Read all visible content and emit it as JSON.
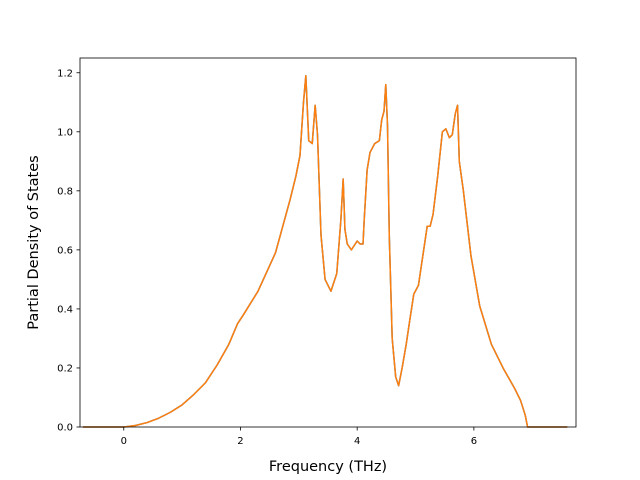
{
  "chart_data": {
    "type": "line",
    "title": "",
    "xlabel": "Frequency (THz)",
    "ylabel": "Partial Density of States",
    "xlim": [
      -0.75,
      7.75
    ],
    "ylim": [
      0,
      1.25
    ],
    "xticks": [
      0,
      2,
      4,
      6
    ],
    "yticks": [
      0.0,
      0.2,
      0.4,
      0.6,
      0.8,
      1.0,
      1.2
    ],
    "xtick_labels": [
      "0",
      "2",
      "4",
      "6"
    ],
    "ytick_labels": [
      "0.0",
      "0.2",
      "0.4",
      "0.6",
      "0.8",
      "1.0",
      "1.2"
    ],
    "grid": false,
    "legend": "none",
    "series": [
      {
        "color": "#1f77b4",
        "x": [
          -0.7,
          0.0,
          0.2,
          0.4,
          0.6,
          0.8,
          1.0,
          1.2,
          1.4,
          1.6,
          1.8,
          1.95,
          2.05,
          2.3,
          2.6,
          2.85,
          2.95,
          3.02,
          3.08,
          3.12,
          3.17,
          3.23,
          3.28,
          3.32,
          3.38,
          3.45,
          3.55,
          3.65,
          3.72,
          3.76,
          3.79,
          3.83,
          3.9,
          4.0,
          4.05,
          4.1,
          4.12,
          4.17,
          4.22,
          4.3,
          4.38,
          4.42,
          4.46,
          4.49,
          4.52,
          4.55,
          4.6,
          4.66,
          4.71,
          4.77,
          4.84,
          4.9,
          4.97,
          5.05,
          5.14,
          5.2,
          5.25,
          5.3,
          5.38,
          5.46,
          5.52,
          5.58,
          5.63,
          5.68,
          5.72,
          5.75,
          5.82,
          5.95,
          6.1,
          6.3,
          6.5,
          6.7,
          6.8,
          6.88,
          6.92,
          7.0,
          7.4,
          7.6
        ],
        "y": [
          0.0,
          0.0,
          0.005,
          0.015,
          0.03,
          0.05,
          0.075,
          0.11,
          0.15,
          0.21,
          0.28,
          0.35,
          0.38,
          0.46,
          0.59,
          0.77,
          0.85,
          0.92,
          1.1,
          1.19,
          0.97,
          0.96,
          1.09,
          0.99,
          0.65,
          0.5,
          0.46,
          0.52,
          0.7,
          0.84,
          0.67,
          0.62,
          0.6,
          0.63,
          0.62,
          0.62,
          0.7,
          0.87,
          0.93,
          0.96,
          0.97,
          1.04,
          1.07,
          1.16,
          1.02,
          0.65,
          0.3,
          0.17,
          0.14,
          0.2,
          0.28,
          0.36,
          0.45,
          0.48,
          0.6,
          0.68,
          0.68,
          0.72,
          0.85,
          1.0,
          1.01,
          0.98,
          0.99,
          1.06,
          1.09,
          0.9,
          0.8,
          0.58,
          0.41,
          0.28,
          0.2,
          0.13,
          0.09,
          0.04,
          0.0,
          0.0,
          0.0,
          0.0
        ]
      },
      {
        "color": "#ff7f0e",
        "x": [
          -0.7,
          0.0,
          0.2,
          0.4,
          0.6,
          0.8,
          1.0,
          1.2,
          1.4,
          1.6,
          1.8,
          1.95,
          2.05,
          2.3,
          2.6,
          2.85,
          2.95,
          3.02,
          3.08,
          3.12,
          3.17,
          3.23,
          3.28,
          3.32,
          3.38,
          3.45,
          3.55,
          3.65,
          3.72,
          3.76,
          3.79,
          3.83,
          3.9,
          4.0,
          4.05,
          4.1,
          4.12,
          4.17,
          4.22,
          4.3,
          4.38,
          4.42,
          4.46,
          4.49,
          4.52,
          4.55,
          4.6,
          4.66,
          4.71,
          4.77,
          4.84,
          4.9,
          4.97,
          5.05,
          5.14,
          5.2,
          5.25,
          5.3,
          5.38,
          5.46,
          5.52,
          5.58,
          5.63,
          5.68,
          5.72,
          5.75,
          5.82,
          5.95,
          6.1,
          6.3,
          6.5,
          6.7,
          6.8,
          6.88,
          6.92,
          7.0,
          7.4,
          7.6
        ],
        "y": [
          0.0,
          0.0,
          0.005,
          0.015,
          0.03,
          0.05,
          0.075,
          0.11,
          0.15,
          0.21,
          0.28,
          0.35,
          0.38,
          0.46,
          0.59,
          0.77,
          0.85,
          0.92,
          1.1,
          1.19,
          0.97,
          0.96,
          1.09,
          0.99,
          0.65,
          0.5,
          0.46,
          0.52,
          0.7,
          0.84,
          0.67,
          0.62,
          0.6,
          0.63,
          0.62,
          0.62,
          0.7,
          0.87,
          0.93,
          0.96,
          0.97,
          1.04,
          1.07,
          1.16,
          1.02,
          0.65,
          0.3,
          0.17,
          0.14,
          0.2,
          0.28,
          0.36,
          0.45,
          0.48,
          0.6,
          0.68,
          0.68,
          0.72,
          0.85,
          1.0,
          1.01,
          0.98,
          0.99,
          1.06,
          1.09,
          0.9,
          0.8,
          0.58,
          0.41,
          0.28,
          0.2,
          0.13,
          0.09,
          0.04,
          0.0,
          0.0,
          0.0,
          0.0
        ]
      }
    ]
  }
}
